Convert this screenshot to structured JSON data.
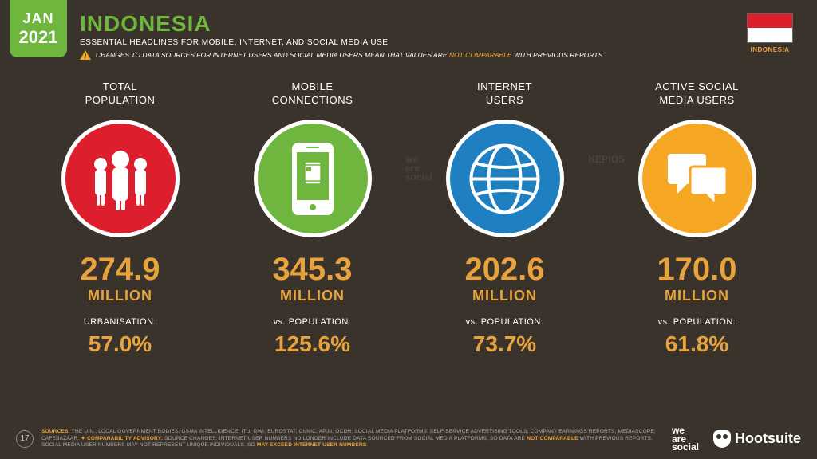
{
  "date": {
    "month": "JAN",
    "year": "2021"
  },
  "header": {
    "title": "INDONESIA",
    "subtitle": "ESSENTIAL HEADLINES FOR MOBILE, INTERNET, AND SOCIAL MEDIA USE",
    "warning_pre": "CHANGES TO DATA SOURCES FOR INTERNET USERS AND SOCIAL MEDIA USERS MEAN THAT VALUES ARE ",
    "warning_nc": "NOT COMPARABLE",
    "warning_post": " WITH PREVIOUS REPORTS"
  },
  "flag": {
    "label": "INDONESIA",
    "top_color": "#dc1e2d",
    "bottom_color": "#ffffff"
  },
  "colors": {
    "accent": "#e8a33d",
    "green": "#6fb63f",
    "background": "#3a332b"
  },
  "stats": [
    {
      "title": "TOTAL\nPOPULATION",
      "icon": "people",
      "circle_color": "#dc1e2d",
      "value": "274.9",
      "unit": "MILLION",
      "sub_label": "URBANISATION:",
      "sub_value": "57.0%",
      "watermark": ""
    },
    {
      "title": "MOBILE\nCONNECTIONS",
      "icon": "phone",
      "circle_color": "#6fb63f",
      "value": "345.3",
      "unit": "MILLION",
      "sub_label": "vs. POPULATION:",
      "sub_value": "125.6%",
      "watermark": "we\nare\nsocial"
    },
    {
      "title": "INTERNET\nUSERS",
      "icon": "globe",
      "circle_color": "#1e7fc1",
      "value": "202.6",
      "unit": "MILLION",
      "sub_label": "vs. POPULATION:",
      "sub_value": "73.7%",
      "watermark": "KEPIOS"
    },
    {
      "title": "ACTIVE SOCIAL\nMEDIA USERS",
      "icon": "chat",
      "circle_color": "#f5a623",
      "value": "170.0",
      "unit": "MILLION",
      "sub_label": "vs. POPULATION:",
      "sub_value": "61.8%",
      "watermark": ""
    }
  ],
  "footer": {
    "page": "17",
    "sources_label": "SOURCES:",
    "sources_text": " THE U.N.; LOCAL GOVERNMENT BODIES; GSMA INTELLIGENCE; ITU; GWI; EUROSTAT; CNNIC; APJII; OCDH; SOCIAL MEDIA PLATFORMS' SELF-SERVICE ADVERTISING TOOLS; COMPANY EARNINGS REPORTS; MEDIASCOPE; CAFEBAZAAR. ",
    "advisory_label": "✦ COMPARABILITY ADVISORY:",
    "advisory_text": " SOURCE CHANGES. INTERNET USER NUMBERS NO LONGER INCLUDE DATA SOURCED FROM SOCIAL MEDIA PLATFORMS, SO DATA ARE ",
    "nc1": "NOT COMPARABLE",
    "advisory_mid": " WITH PREVIOUS REPORTS. SOCIAL MEDIA USER NUMBERS MAY NOT REPRESENT UNIQUE INDIVIDUALS, SO ",
    "nc2": "MAY EXCEED INTERNET USER NUMBERS",
    "advisory_end": ".",
    "logo1_l1": "we",
    "logo1_l2": "are",
    "logo1_l3": "social",
    "logo2": "Hootsuite"
  }
}
